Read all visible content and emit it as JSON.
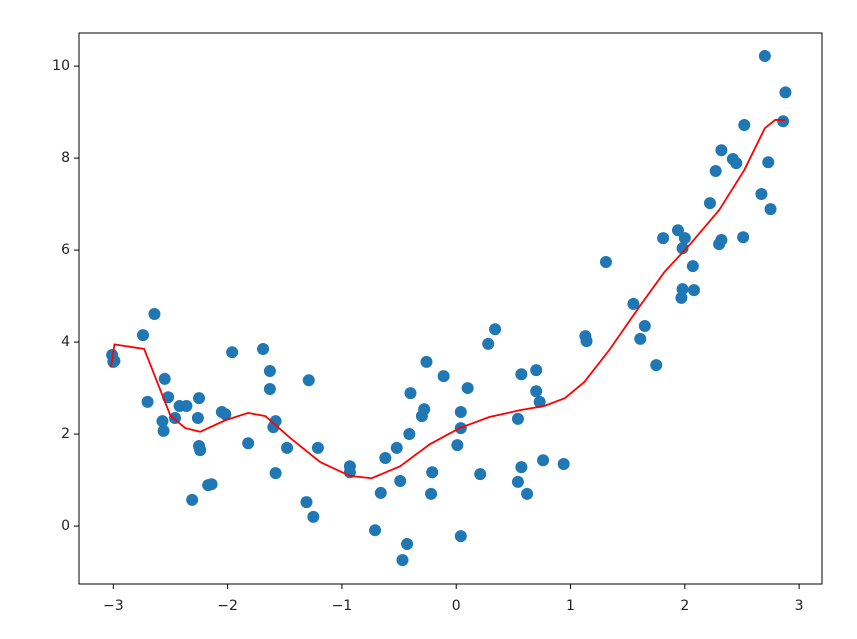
{
  "chart_data": {
    "type": "scatter",
    "xlim": [
      -3.3,
      3.2
    ],
    "ylim": [
      -1.26,
      10.72
    ],
    "xticks": [
      {
        "value": -3,
        "label": "−3"
      },
      {
        "value": -2,
        "label": "−2"
      },
      {
        "value": -1,
        "label": "−1"
      },
      0,
      1,
      2,
      3
    ],
    "yticks": [
      0,
      2,
      4,
      6,
      8,
      10
    ],
    "series": [
      {
        "type": "scatter",
        "color": "#1f77b4",
        "x": [
          -3.01,
          -3.0,
          -2.99,
          -2.74,
          -2.64,
          -2.7,
          -2.55,
          -2.52,
          -2.57,
          -2.56,
          -2.46,
          -2.42,
          -2.36,
          -2.25,
          -2.26,
          -2.25,
          -2.24,
          -2.31,
          -2.17,
          -2.14,
          -2.05,
          -2.02,
          -1.96,
          -1.82,
          -1.69,
          -1.63,
          -1.63,
          -1.58,
          -1.6,
          -1.58,
          -1.48,
          -1.29,
          -1.31,
          -1.25,
          -1.21,
          -0.93,
          -0.93,
          -0.71,
          -0.66,
          -0.62,
          -0.52,
          -0.49,
          -0.47,
          -0.43,
          -0.41,
          -0.4,
          -0.3,
          -0.28,
          -0.26,
          -0.22,
          -0.21,
          -0.11,
          0.01,
          0.04,
          0.04,
          0.04,
          0.1,
          0.21,
          0.28,
          0.34,
          0.54,
          0.54,
          0.57,
          0.57,
          0.62,
          0.7,
          0.7,
          0.73,
          0.76,
          0.94,
          1.13,
          1.14,
          1.31,
          1.55,
          1.61,
          1.65,
          1.75,
          1.81,
          1.94,
          1.97,
          1.98,
          1.98,
          2.0,
          2.07,
          2.08,
          2.22,
          2.27,
          2.32,
          2.3,
          2.32,
          2.42,
          2.45,
          2.51,
          2.52,
          2.67,
          2.7,
          2.73,
          2.75,
          2.86,
          2.88
        ],
        "values": [
          3.72,
          3.57,
          3.59,
          4.15,
          4.61,
          2.7,
          3.2,
          2.8,
          2.28,
          2.07,
          2.35,
          2.61,
          2.61,
          2.78,
          2.35,
          1.74,
          1.65,
          0.57,
          0.89,
          0.91,
          2.48,
          2.43,
          3.78,
          1.8,
          3.85,
          3.37,
          2.98,
          2.28,
          2.15,
          1.15,
          1.7,
          3.17,
          0.52,
          0.2,
          1.7,
          1.3,
          1.17,
          -0.09,
          0.72,
          1.48,
          1.7,
          0.98,
          -0.74,
          -0.39,
          2.0,
          2.89,
          2.39,
          2.54,
          3.57,
          0.7,
          1.17,
          3.26,
          1.76,
          2.48,
          2.13,
          -0.22,
          3.0,
          1.13,
          3.96,
          4.28,
          2.33,
          0.96,
          3.3,
          1.28,
          0.7,
          2.93,
          3.39,
          2.7,
          1.43,
          1.35,
          4.13,
          4.02,
          5.74,
          4.83,
          4.07,
          4.35,
          3.5,
          6.26,
          6.43,
          4.96,
          5.15,
          6.04,
          6.26,
          5.65,
          5.13,
          7.02,
          7.72,
          8.17,
          6.13,
          6.22,
          7.98,
          7.89,
          6.28,
          8.72,
          7.22,
          10.22,
          7.91,
          6.89,
          8.8,
          9.43
        ]
      },
      {
        "type": "line",
        "color": "#ff0000",
        "x": [
          -3.02,
          -2.99,
          -2.73,
          -2.5,
          -2.37,
          -2.24,
          -2.02,
          -1.82,
          -1.67,
          -1.45,
          -1.19,
          -0.93,
          -0.74,
          -0.49,
          -0.23,
          0.03,
          0.29,
          0.56,
          0.77,
          0.95,
          1.12,
          1.34,
          1.6,
          1.82,
          2.04,
          2.3,
          2.52,
          2.7,
          2.79,
          2.88
        ],
        "values": [
          3.45,
          3.95,
          3.85,
          2.4,
          2.13,
          2.05,
          2.3,
          2.46,
          2.39,
          1.91,
          1.39,
          1.09,
          1.04,
          1.3,
          1.78,
          2.13,
          2.37,
          2.52,
          2.61,
          2.78,
          3.13,
          3.83,
          4.76,
          5.52,
          6.11,
          6.87,
          7.74,
          8.65,
          8.83,
          8.83
        ]
      }
    ]
  }
}
